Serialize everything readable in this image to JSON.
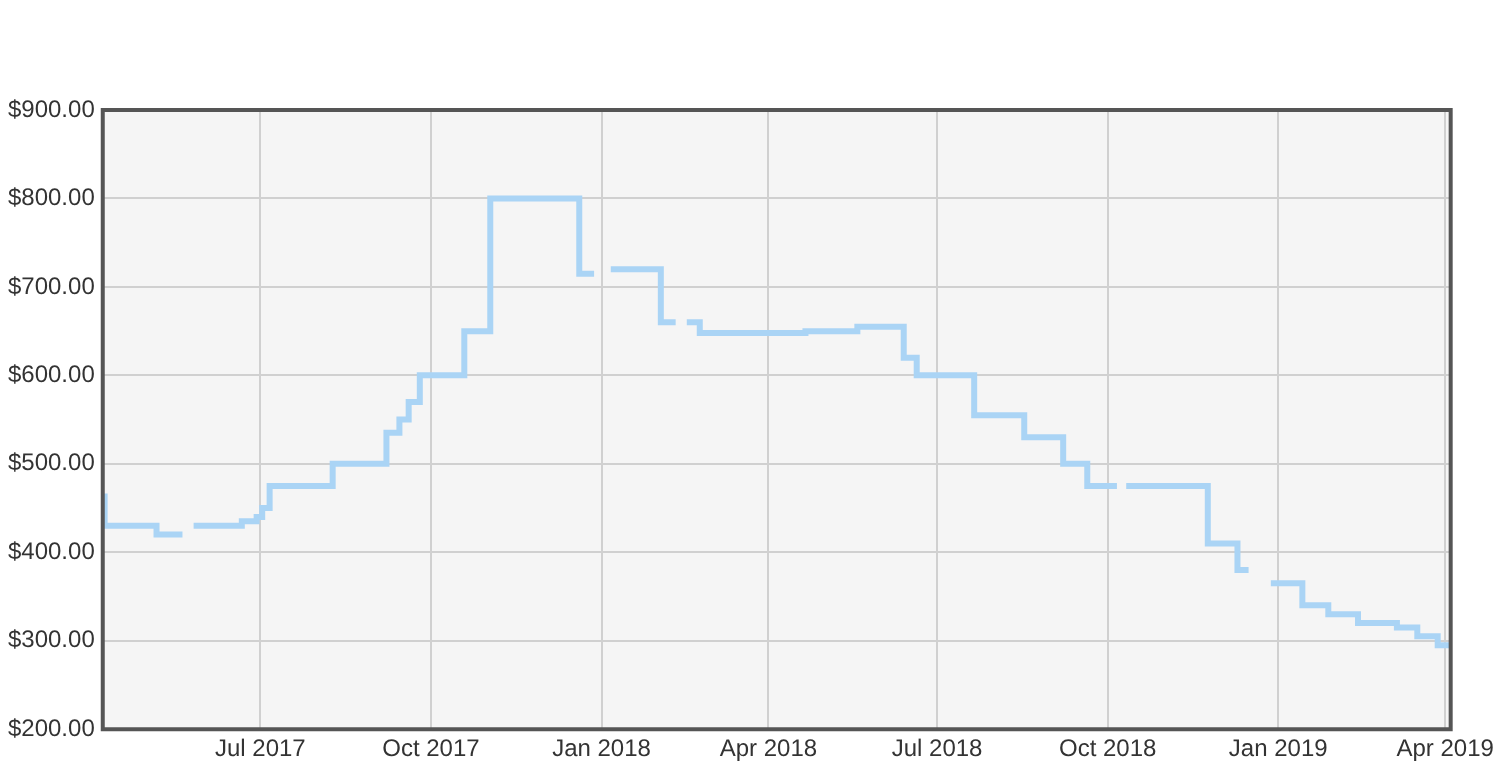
{
  "chart_data": {
    "type": "step",
    "grid": true,
    "legend": false,
    "line_style": "solid",
    "marker": "none",
    "xlim": [
      "2017-04-07",
      "2019-04-04"
    ],
    "xticks": [
      {
        "value": "2017-07-01",
        "label": "Jul 2017"
      },
      {
        "value": "2017-10-01",
        "label": "Oct 2017"
      },
      {
        "value": "2018-01-01",
        "label": "Jan 2018"
      },
      {
        "value": "2018-04-01",
        "label": "Apr 2018"
      },
      {
        "value": "2018-07-01",
        "label": "Jul 2018"
      },
      {
        "value": "2018-10-01",
        "label": "Oct 2018"
      },
      {
        "value": "2019-01-01",
        "label": "Jan 2019"
      },
      {
        "value": "2019-04-01",
        "label": "Apr 2019"
      }
    ],
    "ylim": [
      200,
      900
    ],
    "yticks": [
      {
        "value": 200,
        "label": "$200.00"
      },
      {
        "value": 300,
        "label": "$300.00"
      },
      {
        "value": 400,
        "label": "$400.00"
      },
      {
        "value": 500,
        "label": "$500.00"
      },
      {
        "value": 600,
        "label": "$600.00"
      },
      {
        "value": 700,
        "label": "$700.00"
      },
      {
        "value": 800,
        "label": "$800.00"
      },
      {
        "value": 900,
        "label": "$900.00"
      }
    ],
    "series": [
      {
        "color": "#aad4f5",
        "x": [
          "2017-04-07",
          "2017-04-08",
          "2017-05-06",
          "2017-05-20",
          "2017-05-23",
          "2017-05-26",
          "2017-06-21",
          "2017-06-29",
          "2017-07-02",
          "2017-07-06",
          "2017-08-09",
          "2017-09-07",
          "2017-09-14",
          "2017-09-19",
          "2017-09-25",
          "2017-10-19",
          "2017-11-02",
          "2017-12-20",
          "2017-12-28",
          "2018-01-02",
          "2018-01-06",
          "2018-02-02",
          "2018-02-10",
          "2018-02-13",
          "2018-02-16",
          "2018-02-23",
          "2018-04-21",
          "2018-05-19",
          "2018-06-13",
          "2018-06-20",
          "2018-07-21",
          "2018-08-17",
          "2018-09-07",
          "2018-09-20",
          "2018-10-06",
          "2018-10-08",
          "2018-10-11",
          "2018-11-24",
          "2018-12-10",
          "2018-12-16",
          "2018-12-20",
          "2018-12-28",
          "2019-01-14",
          "2019-01-28",
          "2019-02-13",
          "2019-03-06",
          "2019-03-17",
          "2019-03-28",
          "2019-04-04"
        ],
        "values": [
          463,
          430,
          420,
          420,
          null,
          430,
          435,
          440,
          450,
          475,
          500,
          535,
          550,
          570,
          600,
          650,
          800,
          715,
          715,
          null,
          720,
          660,
          660,
          null,
          660,
          648,
          650,
          655,
          620,
          600,
          555,
          530,
          500,
          475,
          475,
          null,
          475,
          410,
          380,
          380,
          null,
          365,
          340,
          330,
          320,
          315,
          305,
          295,
          295
        ]
      }
    ]
  }
}
